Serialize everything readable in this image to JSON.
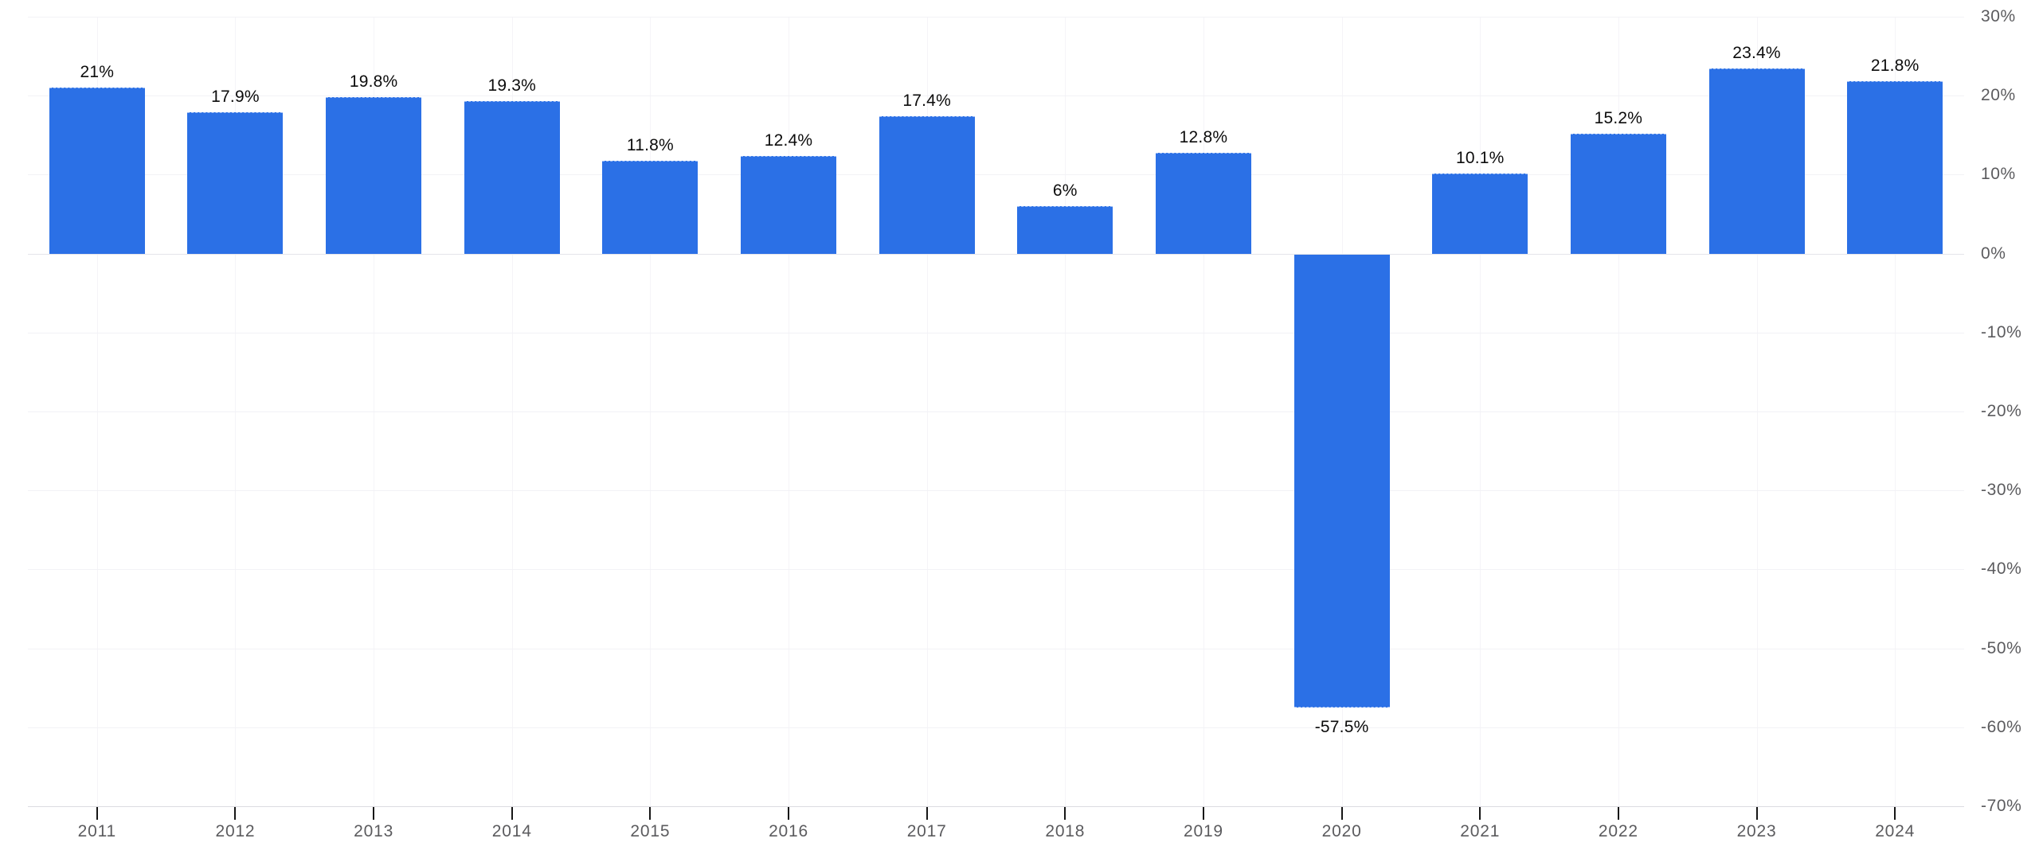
{
  "chart_data": {
    "type": "bar",
    "title": "",
    "xlabel": "",
    "ylabel": "",
    "categories": [
      "2011",
      "2012",
      "2013",
      "2014",
      "2015",
      "2016",
      "2017",
      "2018",
      "2019",
      "2020",
      "2021",
      "2022",
      "2023",
      "2024"
    ],
    "values": [
      21,
      17.9,
      19.8,
      19.3,
      11.8,
      12.4,
      17.4,
      6,
      12.8,
      -57.5,
      10.1,
      15.2,
      23.4,
      21.8
    ],
    "bar_labels": [
      "21%",
      "17.9%",
      "19.8%",
      "19.3%",
      "11.8%",
      "12.4%",
      "17.4%",
      "6%",
      "12.8%",
      "-57.5%",
      "10.1%",
      "15.2%",
      "23.4%",
      "21.8%"
    ],
    "ylim": [
      -70,
      30
    ],
    "yticks": [
      30,
      20,
      10,
      0,
      -10,
      -20,
      -30,
      -40,
      -50,
      -60,
      -70
    ],
    "ytick_labels": [
      "30%",
      "20%",
      "10%",
      "0%",
      "-10%",
      "-20%",
      "-30%",
      "-40%",
      "-50%",
      "-60%",
      "-70%"
    ],
    "y_axis_side": "right",
    "grid": true,
    "legend": "none",
    "colors": {
      "bar": "#2b70e6",
      "bar_label_text": "#0c0c0c",
      "axis_text": "#5b5b5e",
      "gridline": "#f2f2f6",
      "zero_line": "#e4e4ea",
      "baseline": "#dcdce1",
      "tick_mark": "#161616",
      "background": "#ffffff"
    }
  }
}
